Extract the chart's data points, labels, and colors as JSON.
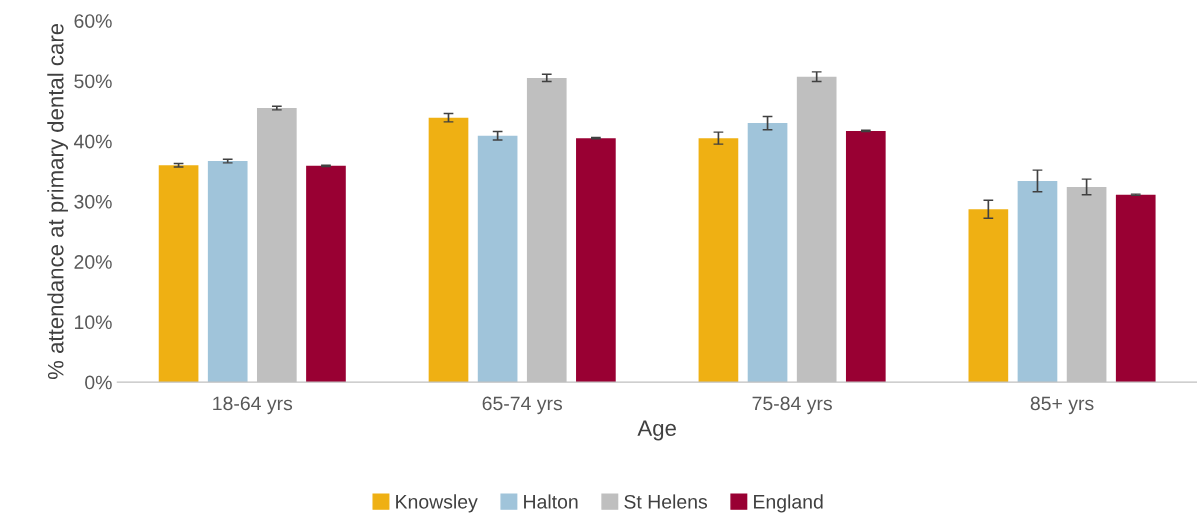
{
  "chart_data": {
    "type": "bar",
    "xlabel": "Age",
    "ylabel": "% attendance at primary dental care",
    "categories": [
      "18-64 yrs",
      "65-74 yrs",
      "75-84 yrs",
      "85+ yrs"
    ],
    "series": [
      {
        "name": "Knowsley",
        "color": "#efb013",
        "values": [
          36.0,
          43.9,
          40.5,
          28.7
        ],
        "errors": [
          0.3,
          0.7,
          1.0,
          1.5
        ]
      },
      {
        "name": "Halton",
        "color": "#a0c4da",
        "values": [
          36.7,
          40.9,
          43.0,
          33.4
        ],
        "errors": [
          0.3,
          0.7,
          1.1,
          1.8
        ]
      },
      {
        "name": "St Helens",
        "color": "#bfbfbf",
        "values": [
          45.5,
          50.5,
          50.7,
          32.4
        ],
        "errors": [
          0.3,
          0.6,
          0.8,
          1.3
        ]
      },
      {
        "name": "England",
        "color": "#990033",
        "values": [
          35.9,
          40.5,
          41.7,
          31.1
        ],
        "errors": [
          0.1,
          0.1,
          0.1,
          0.1
        ]
      }
    ],
    "ylim": [
      0,
      60
    ],
    "yticks": [
      {
        "value": 0,
        "label": "0%"
      },
      {
        "value": 10,
        "label": "10%"
      },
      {
        "value": 20,
        "label": "20%"
      },
      {
        "value": 30,
        "label": "30%"
      },
      {
        "value": 40,
        "label": "40%"
      },
      {
        "value": 50,
        "label": "50%"
      },
      {
        "value": 60,
        "label": "60%"
      }
    ],
    "grid": false,
    "legend": "bottom"
  }
}
